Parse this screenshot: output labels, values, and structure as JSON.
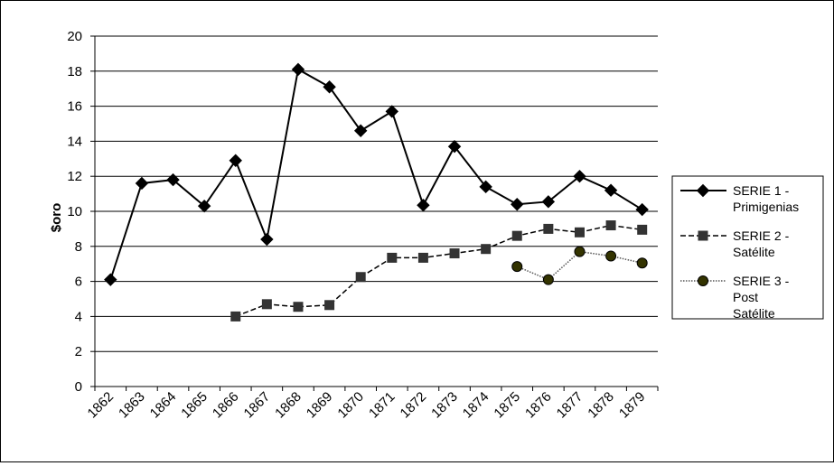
{
  "chart_data": {
    "type": "line",
    "title": "",
    "xlabel": "",
    "ylabel": "$oro",
    "categories": [
      "1862",
      "1863",
      "1864",
      "1865",
      "1866",
      "1867",
      "1868",
      "1869",
      "1870",
      "1871",
      "1872",
      "1873",
      "1874",
      "1875",
      "1876",
      "1877",
      "1878",
      "1879"
    ],
    "ylim": [
      0,
      20
    ],
    "yticks": [
      0,
      2,
      4,
      6,
      8,
      10,
      12,
      14,
      16,
      18,
      20
    ],
    "grid": "horizontal",
    "legend_position": "right",
    "series": [
      {
        "name": "SERIE 1 - Primigenias",
        "legend_lines": [
          "SERIE 1 -",
          "Primigenias"
        ],
        "marker": "diamond",
        "line_style": "solid",
        "color": "#000000",
        "values": [
          6.1,
          11.6,
          11.8,
          10.3,
          12.9,
          8.4,
          18.1,
          17.1,
          14.6,
          15.7,
          10.35,
          13.7,
          11.4,
          10.4,
          10.55,
          12.0,
          11.2,
          10.1
        ]
      },
      {
        "name": "SERIE 2 - Satélite",
        "legend_lines": [
          "SERIE 2 -",
          "Satélite"
        ],
        "marker": "square",
        "line_style": "dashed",
        "color": "#333333",
        "values": [
          null,
          null,
          null,
          null,
          4.0,
          4.7,
          4.55,
          4.65,
          6.25,
          7.35,
          7.35,
          7.6,
          7.85,
          8.6,
          9.0,
          8.8,
          9.2,
          8.95
        ]
      },
      {
        "name": "SERIE 3 - Post Satélite",
        "legend_lines": [
          "SERIE 3 -",
          "Post",
          "Satélite"
        ],
        "marker": "circle",
        "line_style": "dotted",
        "color": "#333300",
        "values": [
          null,
          null,
          null,
          null,
          null,
          null,
          null,
          null,
          null,
          null,
          null,
          null,
          null,
          6.85,
          6.1,
          7.7,
          7.45,
          7.05
        ]
      }
    ]
  }
}
